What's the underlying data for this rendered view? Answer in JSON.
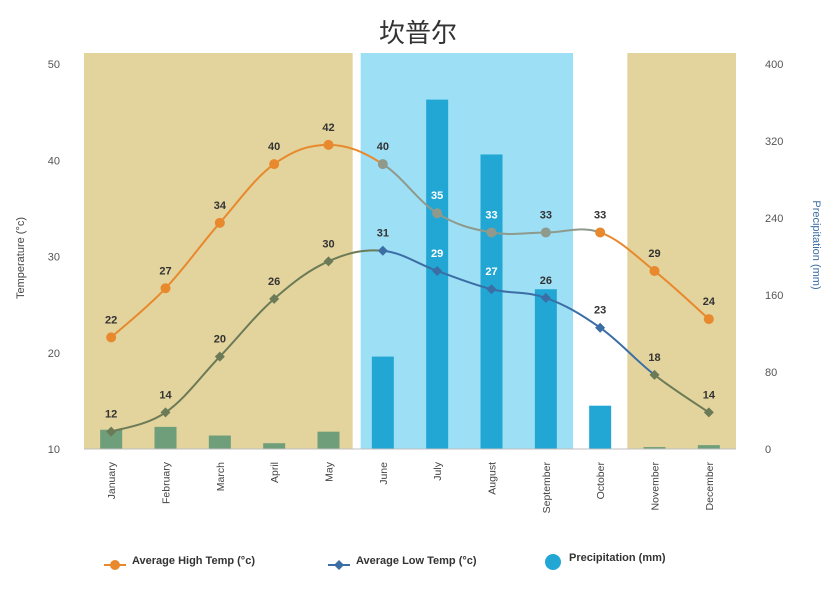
{
  "chart_data": {
    "type": "bar",
    "title": "坎普尔",
    "categories": [
      "January",
      "February",
      "March",
      "April",
      "May",
      "June",
      "July",
      "August",
      "September",
      "October",
      "November",
      "December"
    ],
    "y_left": {
      "label": "Temperature (°c)",
      "range": [
        10,
        50
      ],
      "ticks": [
        10,
        20,
        30,
        40,
        50
      ]
    },
    "y_right": {
      "label": "Precipitation (mm)",
      "range": [
        0,
        400
      ],
      "ticks": [
        0,
        80,
        160,
        240,
        320,
        400
      ]
    },
    "series": [
      {
        "name": "Average High Temp (°c)",
        "type": "line",
        "axis": "left",
        "color": "#e8892e",
        "values": [
          22,
          27,
          34,
          40,
          42,
          40,
          35,
          33,
          33,
          33,
          29,
          24
        ],
        "points": [
          21.6,
          26.7,
          33.5,
          39.6,
          41.6,
          39.6,
          34.5,
          32.5,
          32.5,
          32.5,
          28.5,
          23.5
        ]
      },
      {
        "name": "Average Low Temp (°c)",
        "type": "line",
        "axis": "left",
        "color": "#3b6ea5",
        "values": [
          12,
          14,
          20,
          26,
          30,
          31,
          29,
          27,
          26,
          23,
          18,
          14
        ],
        "points": [
          11.8,
          13.8,
          19.6,
          25.6,
          29.5,
          30.6,
          28.5,
          26.6,
          25.7,
          22.6,
          17.7,
          13.8
        ]
      },
      {
        "name": "Precipitation (mm)",
        "type": "bar",
        "axis": "right",
        "color": "#22a7d4",
        "values": [
          20,
          23,
          14,
          6,
          18,
          96,
          363,
          306,
          166,
          45,
          2,
          4
        ]
      }
    ],
    "seasons": [
      {
        "type": "dry",
        "start": 0,
        "end": 5,
        "color": "#e3d39c"
      },
      {
        "type": "monsoon",
        "start": 5,
        "end": 9,
        "color": "#9ddff5"
      },
      {
        "type": "dry",
        "start": 10,
        "end": 12,
        "color": "#e3d39c"
      }
    ],
    "grid": false,
    "legend_position": "bottom"
  }
}
